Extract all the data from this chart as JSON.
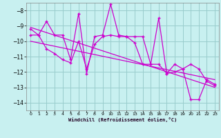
{
  "xlabel": "Windchill (Refroidissement éolien,°C)",
  "bg_color": "#c8f0f0",
  "grid_color": "#99cccc",
  "line_color": "#cc00cc",
  "xlim": [
    -0.5,
    23.5
  ],
  "ylim": [
    -14.5,
    -7.5
  ],
  "yticks": [
    -14,
    -13,
    -12,
    -11,
    -10,
    -9,
    -8
  ],
  "xticks": [
    0,
    1,
    2,
    3,
    4,
    5,
    6,
    7,
    8,
    9,
    10,
    11,
    12,
    13,
    14,
    15,
    16,
    17,
    18,
    19,
    20,
    21,
    22,
    23
  ],
  "series1_x": [
    0,
    1,
    2,
    3,
    4,
    5,
    6,
    7,
    8,
    9,
    10,
    11,
    12,
    13,
    14,
    15,
    16,
    17,
    18,
    19,
    20,
    21,
    22,
    23
  ],
  "series1_y": [
    -9.2,
    -9.6,
    -8.7,
    -9.6,
    -9.6,
    -11.2,
    -8.2,
    -12.1,
    -9.7,
    -9.6,
    -7.6,
    -9.6,
    -9.7,
    -9.7,
    -9.7,
    -11.5,
    -8.5,
    -12.1,
    -11.5,
    -11.8,
    -13.8,
    -13.8,
    -12.5,
    -12.8
  ],
  "series2_x": [
    0,
    1,
    2,
    3,
    4,
    5,
    6,
    7,
    8,
    9,
    10,
    11,
    12,
    13,
    14,
    15,
    16,
    17,
    18,
    19,
    20,
    21,
    22,
    23
  ],
  "series2_y": [
    -9.6,
    -9.6,
    -10.5,
    -10.8,
    -11.2,
    -11.4,
    -10.0,
    -11.8,
    -10.2,
    -9.7,
    -9.6,
    -9.7,
    -9.7,
    -10.1,
    -11.5,
    -11.5,
    -11.5,
    -12.1,
    -12.0,
    -11.8,
    -11.5,
    -11.8,
    -12.6,
    -12.9
  ],
  "trend1_x": [
    0,
    23
  ],
  "trend1_y": [
    -9.1,
    -13.0
  ],
  "trend2_x": [
    0,
    23
  ],
  "trend2_y": [
    -10.0,
    -12.5
  ]
}
